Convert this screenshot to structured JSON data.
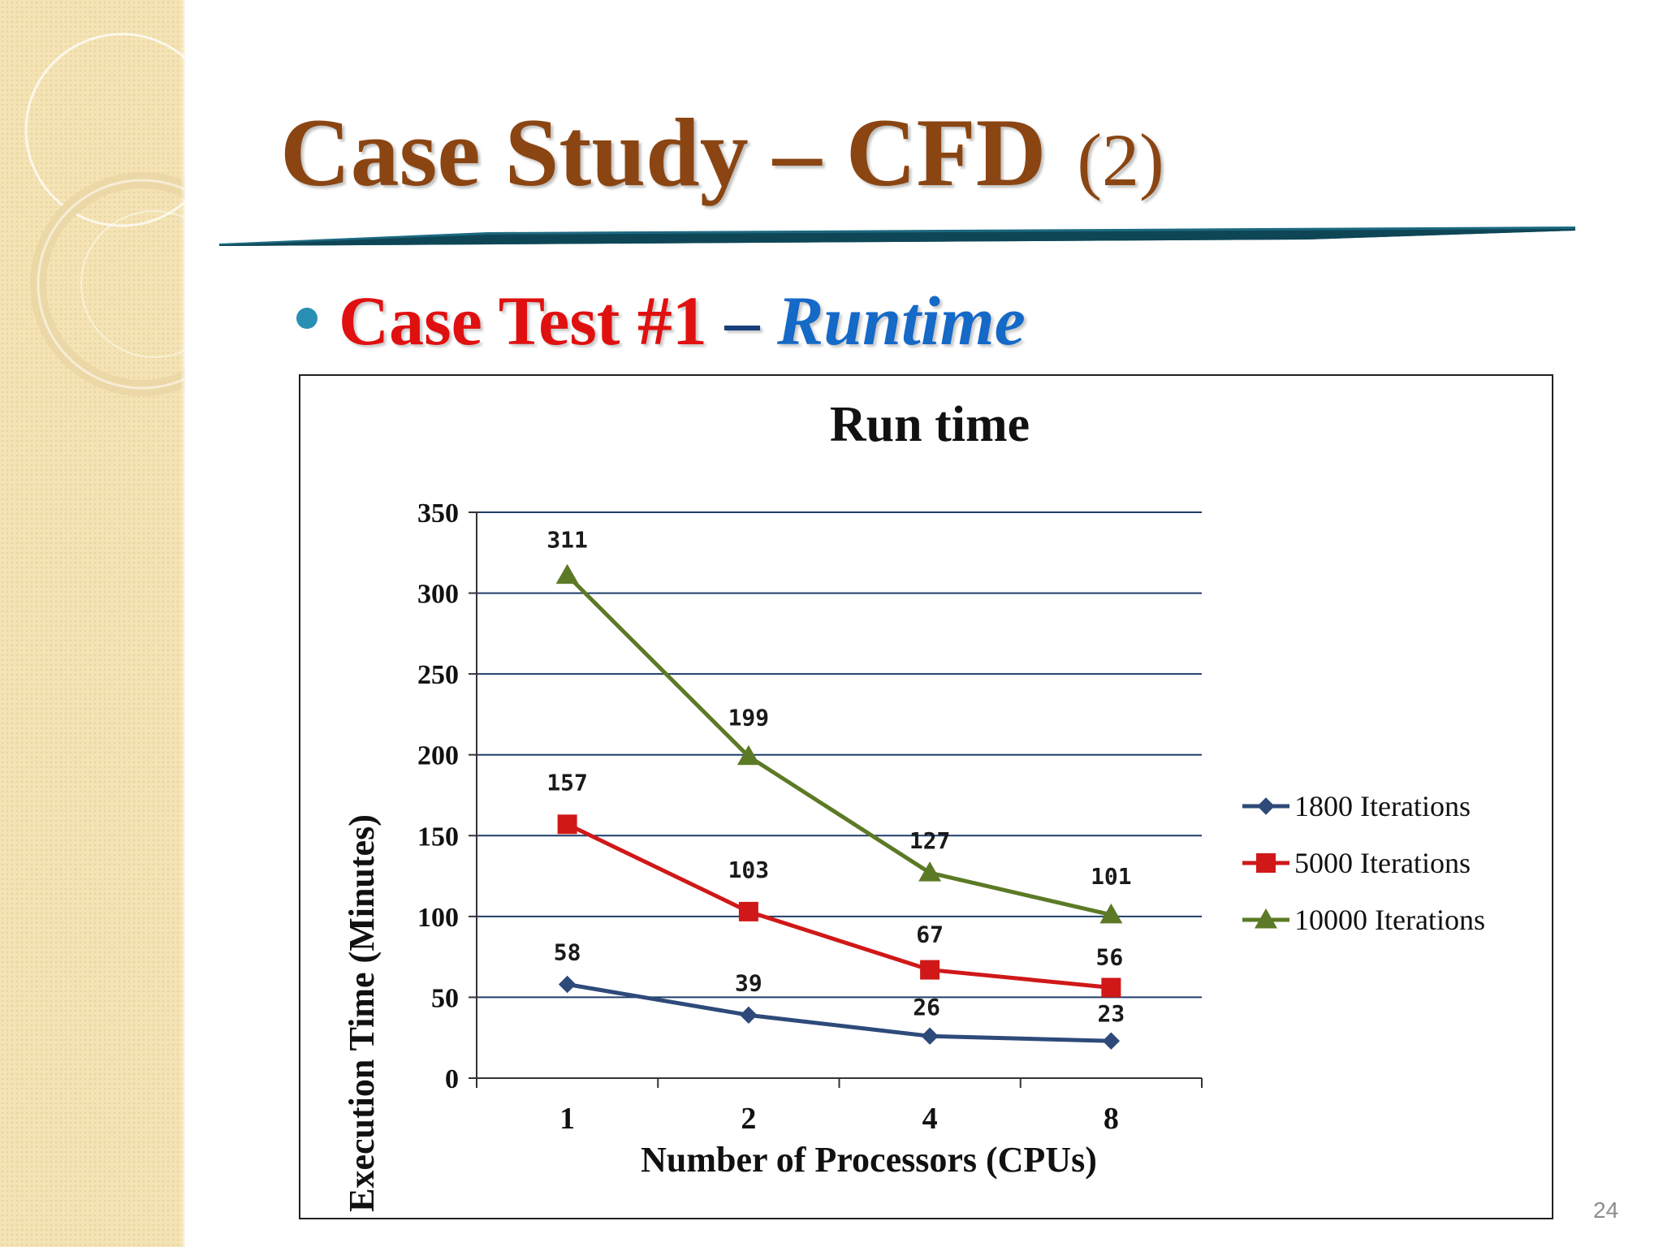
{
  "slide": {
    "title_main": "Case Study – CFD",
    "title_num": "(2)",
    "bullet_red": "Case Test #1",
    "bullet_dash": "–",
    "bullet_blue": "Runtime",
    "page_number": "24"
  },
  "colors": {
    "title": "#8b4512",
    "bullet_red": "#e01010",
    "bullet_blue": "#1569c7",
    "bullet_dot": "#2a8fb5",
    "rule": "#1c6a80"
  },
  "chart_data": {
    "type": "line",
    "title": "Run time",
    "xlabel": "Number of Processors (CPUs)",
    "ylabel": "Execution Time (Minutes)",
    "categories": [
      "1",
      "2",
      "4",
      "8"
    ],
    "ylim": [
      0,
      350
    ],
    "yticks": [
      0,
      50,
      100,
      150,
      200,
      250,
      300,
      350
    ],
    "grid": true,
    "legend": "right",
    "series": [
      {
        "name": "1800 Iterations",
        "values": [
          58,
          39,
          26,
          23
        ],
        "color": "#2e4a7a",
        "marker": "diamond"
      },
      {
        "name": "5000 Iterations",
        "values": [
          157,
          103,
          67,
          56
        ],
        "color": "#d01818",
        "marker": "square"
      },
      {
        "name": "10000 Iterations",
        "values": [
          311,
          199,
          127,
          101
        ],
        "color": "#5c7a26",
        "marker": "triangle"
      }
    ]
  }
}
